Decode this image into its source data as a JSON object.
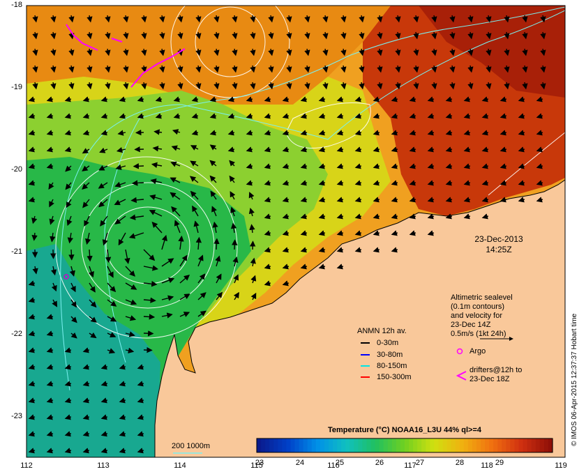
{
  "map": {
    "x_ticks": [
      "112",
      "113",
      "114",
      "115",
      "116",
      "117",
      "118",
      "119"
    ],
    "y_ticks": [
      "-18",
      "-19",
      "-20",
      "-21",
      "-22",
      "-23"
    ],
    "date": "23-Dec-2013",
    "time": "14:25Z"
  },
  "notes": {
    "altimetric_lines": [
      "Altimetric sealevel",
      "(0.1m contours)",
      "and velocity for",
      "23-Dec 14Z",
      "0.5m/s (1kt 24h)"
    ],
    "argo": "Argo",
    "drifters_lines": [
      "drifters@12h to",
      "23-Dec 18Z"
    ],
    "bathymetry": "200  1000m"
  },
  "anmn": {
    "title": "ANMN 12h av.",
    "rows": [
      {
        "label": "0-30m",
        "color": "#000000"
      },
      {
        "label": "30-80m",
        "color": "#0000ff"
      },
      {
        "label": "80-150m",
        "color": "#00e5e5"
      },
      {
        "label": "150-300m",
        "color": "#ff0000"
      }
    ]
  },
  "colorbar": {
    "title": "Temperature (°C) NOAA16_L3U 44% ql>=4",
    "ticks": [
      "23",
      "24",
      "25",
      "26",
      "27",
      "28",
      "29"
    ]
  },
  "credit": "© IMOS 06-Apr-2015 12:37:37 Hobart time",
  "colors": {
    "land": "#f9c89a",
    "warm": "#d4300a",
    "orange": "#f08a10",
    "yellow": "#e8d010",
    "green": "#40c040",
    "teal": "#1ab28c",
    "drifter": "#ff00ff"
  }
}
